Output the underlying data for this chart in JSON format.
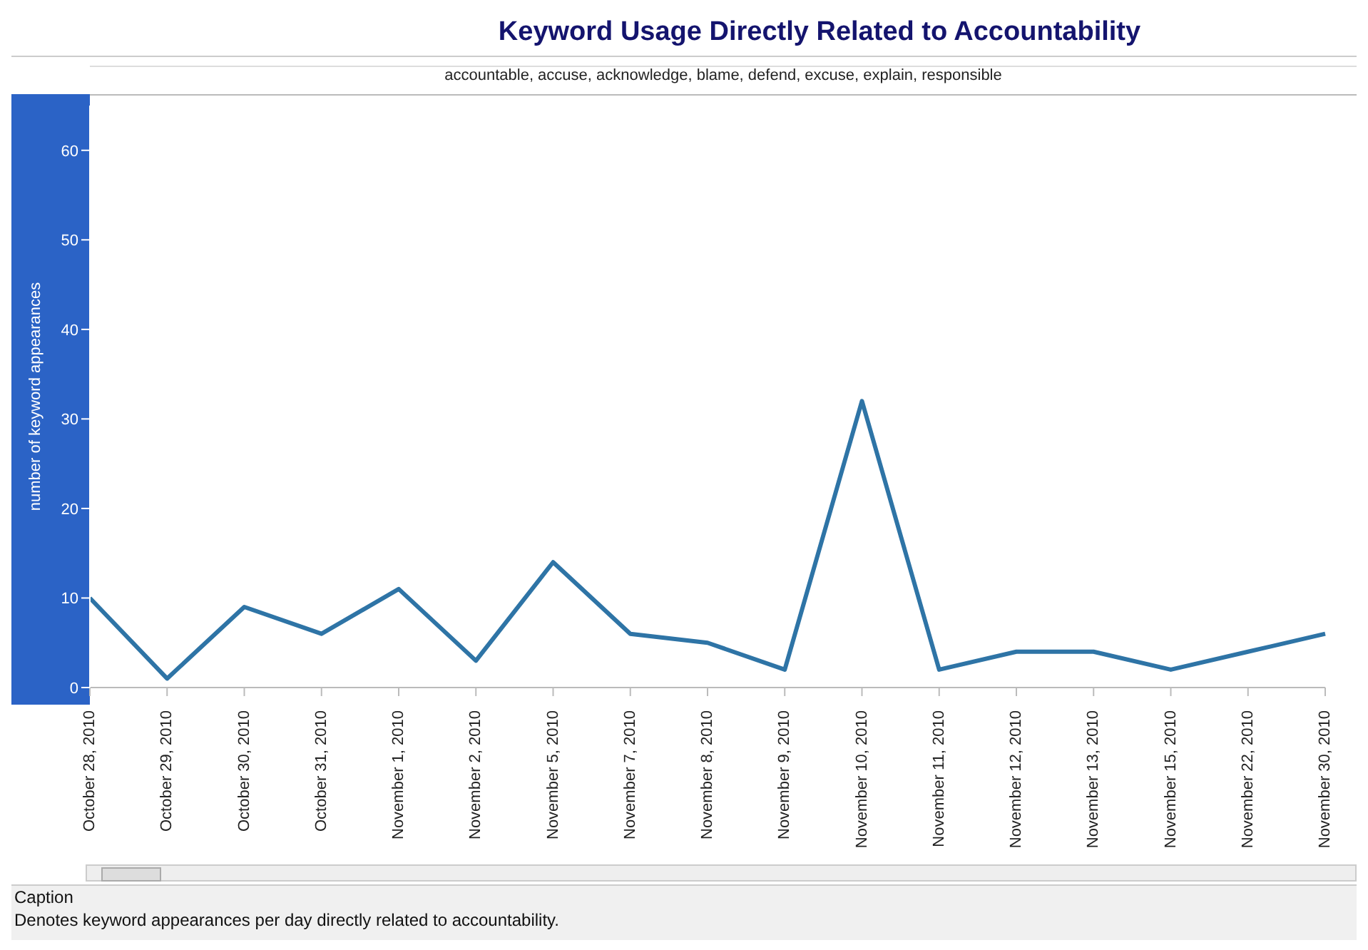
{
  "chart_data": {
    "type": "line",
    "title": "Keyword Usage Directly Related to Accountability",
    "subtitle": "accountable, accuse, acknowledge, blame, defend, excuse, explain, responsible",
    "ylabel": "number of keyword appearances",
    "categories": [
      "October 28, 2010",
      "October 29, 2010",
      "October 30, 2010",
      "October 31, 2010",
      "November 1, 2010",
      "November 2, 2010",
      "November 5, 2010",
      "November 7, 2010",
      "November 8, 2010",
      "November 9, 2010",
      "November 10, 2010",
      "November 11, 2010",
      "November 12, 2010",
      "November 13, 2010",
      "November 15, 2010",
      "November 22, 2010",
      "November 30, 2010"
    ],
    "series": [
      {
        "color": "#2e74a6",
        "values": [
          10,
          1,
          9,
          6,
          11,
          3,
          14,
          6,
          5,
          2,
          32,
          2,
          4,
          4,
          2,
          4,
          6
        ]
      }
    ],
    "ylim": [
      0,
      65
    ],
    "yticks": [
      0,
      10,
      20,
      30,
      40,
      50,
      60
    ],
    "grid": false,
    "legend": false,
    "marker": "none",
    "line_style": "solid",
    "annotations": [
      "Caption",
      "Denotes keyword appearances per day directly related to accountability."
    ]
  }
}
